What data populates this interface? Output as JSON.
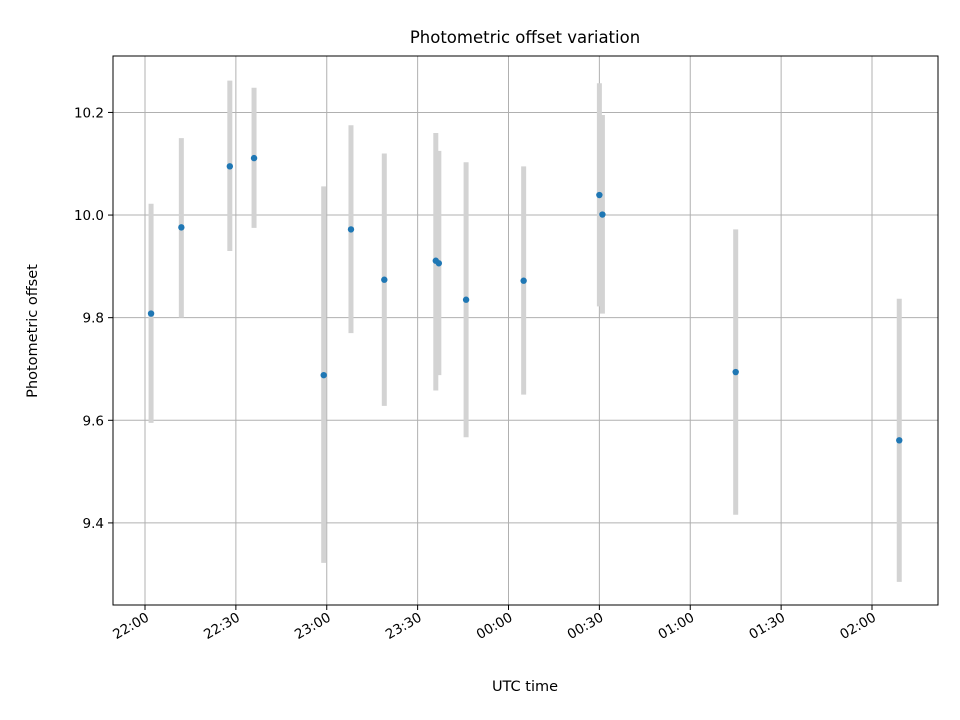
{
  "chart_data": {
    "type": "scatter",
    "title": "Photometric offset variation",
    "xlabel": "UTC time",
    "ylabel": "Photometric offset",
    "x_tick_labels": [
      "22:00",
      "22:30",
      "23:00",
      "23:30",
      "00:00",
      "00:30",
      "01:00",
      "01:30",
      "02:00"
    ],
    "y_tick_labels": [
      "9.4",
      "9.6",
      "9.8",
      "10.0",
      "10.2"
    ],
    "y_ticks": [
      9.4,
      9.6,
      9.8,
      10.0,
      10.2
    ],
    "ylim": [
      9.24,
      10.31
    ],
    "grid": true,
    "points": [
      {
        "time": "22:02",
        "value": 9.808,
        "lower": 9.595,
        "upper": 10.022
      },
      {
        "time": "22:12",
        "value": 9.976,
        "lower": 9.8,
        "upper": 10.15
      },
      {
        "time": "22:28",
        "value": 10.095,
        "lower": 9.93,
        "upper": 10.262
      },
      {
        "time": "22:36",
        "value": 10.111,
        "lower": 9.975,
        "upper": 10.248
      },
      {
        "time": "22:59",
        "value": 9.688,
        "lower": 9.322,
        "upper": 10.056
      },
      {
        "time": "23:08",
        "value": 9.972,
        "lower": 9.77,
        "upper": 10.175
      },
      {
        "time": "23:19",
        "value": 9.874,
        "lower": 9.628,
        "upper": 10.12
      },
      {
        "time": "23:36",
        "value": 9.911,
        "lower": 9.658,
        "upper": 10.16
      },
      {
        "time": "23:37",
        "value": 9.906,
        "lower": 9.688,
        "upper": 10.125
      },
      {
        "time": "23:46",
        "value": 9.835,
        "lower": 9.567,
        "upper": 10.103
      },
      {
        "time": "00:05",
        "value": 9.872,
        "lower": 9.65,
        "upper": 10.095
      },
      {
        "time": "00:30",
        "value": 10.039,
        "lower": 9.822,
        "upper": 10.257
      },
      {
        "time": "00:31",
        "value": 10.001,
        "lower": 9.808,
        "upper": 10.195
      },
      {
        "time": "01:15",
        "value": 9.694,
        "lower": 9.416,
        "upper": 9.972
      },
      {
        "time": "02:09",
        "value": 9.561,
        "lower": 9.285,
        "upper": 9.837
      }
    ]
  },
  "colors": {
    "point": "#1f77b4",
    "errorbar": "#d3d3d3",
    "grid": "#b0b0b0",
    "axis": "#000000"
  }
}
